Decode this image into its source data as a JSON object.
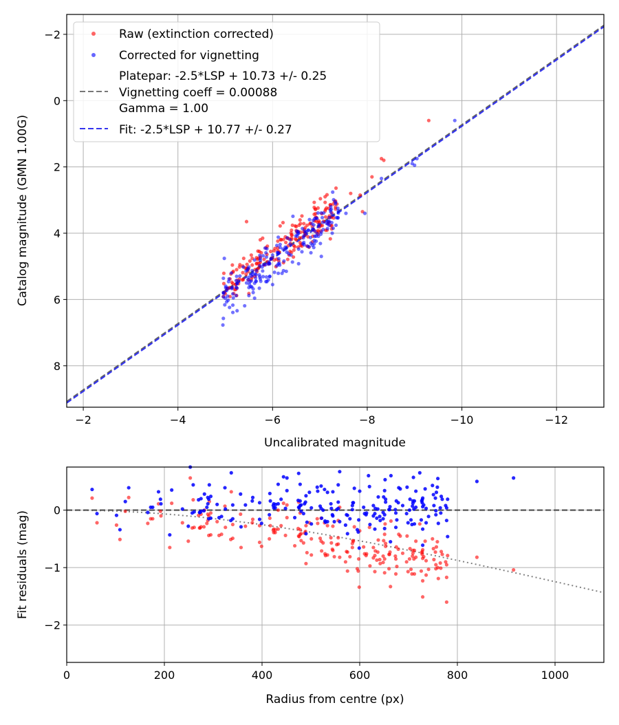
{
  "chart_data": [
    {
      "type": "scatter",
      "xlabel": "Uncalibrated magnitude",
      "ylabel": "Catalog magnitude (GMN 1.00G)",
      "xlim": [
        -1.65,
        -13.0
      ],
      "ylim": [
        -2.6,
        9.25
      ],
      "x_ticks": [
        -2,
        -4,
        -6,
        -8,
        -10,
        -12
      ],
      "x_tick_labels": [
        "−2",
        "−4",
        "−6",
        "−8",
        "−10",
        "−12"
      ],
      "y_ticks": [
        -2,
        0,
        2,
        4,
        6,
        8
      ],
      "y_tick_labels": [
        "−2",
        "0",
        "2",
        "4",
        "6",
        "8"
      ],
      "grid": true,
      "legend_position": "top-left",
      "legend": [
        {
          "label": "Raw (extinction corrected)",
          "kind": "marker",
          "color": "#ff0000"
        },
        {
          "label": "Corrected for vignetting",
          "kind": "marker",
          "color": "#0000ff"
        },
        {
          "label": "Platepar: -2.5*LSP + 10.73 +/- 0.25",
          "kind": "line-gray"
        },
        {
          "label": "Vignetting coeff = 0.00088",
          "kind": "none"
        },
        {
          "label": "Gamma = 1.00",
          "kind": "none"
        },
        {
          "label": "Fit: -2.5*LSP + 10.77 +/- 0.27",
          "kind": "line-blue"
        }
      ],
      "fit_lines": [
        {
          "name": "Platepar",
          "intercept": 10.73,
          "color": "#555555"
        },
        {
          "name": "Fit",
          "intercept": 10.77,
          "color": "#2222ee"
        }
      ],
      "series": [
        {
          "name": "Raw (extinction corrected)",
          "color": "#ff0000",
          "x": [],
          "y": []
        },
        {
          "name": "Corrected for vignetting",
          "color": "#0000ff",
          "x": [],
          "y": []
        }
      ],
      "generator": {
        "n": 210,
        "x_range": [
          -4.95,
          -7.4
        ],
        "slope": 1.0,
        "intercept": 10.75,
        "noise": 0.32,
        "outliers_raw": [
          [
            -9.3,
            0.6
          ],
          [
            -8.35,
            1.8
          ],
          [
            -8.3,
            1.75
          ],
          [
            -8.1,
            2.3
          ],
          [
            -7.85,
            2.85
          ],
          [
            -7.65,
            2.8
          ],
          [
            -7.9,
            3.35
          ],
          [
            -5.45,
            3.65
          ]
        ],
        "outliers_corrected": [
          [
            -9.85,
            0.6
          ],
          [
            -9.05,
            1.75
          ],
          [
            -8.95,
            1.9
          ],
          [
            -9.0,
            1.95
          ],
          [
            -8.3,
            2.35
          ],
          [
            -7.95,
            3.4
          ],
          [
            -7.55,
            3.4
          ]
        ]
      }
    },
    {
      "type": "scatter",
      "xlabel": "Radius from centre (px)",
      "ylabel": "Fit residuals (mag)",
      "xlim": [
        0,
        1100
      ],
      "ylim": [
        -2.65,
        0.75
      ],
      "x_ticks": [
        0,
        200,
        400,
        600,
        800,
        1000
      ],
      "x_tick_labels": [
        "0",
        "200",
        "400",
        "600",
        "800",
        "1000"
      ],
      "y_ticks": [
        -2,
        -1,
        0
      ],
      "y_tick_labels": [
        "−2",
        "−1",
        "0"
      ],
      "grid": true,
      "reference_line": {
        "y": 0,
        "style": "dashed"
      },
      "vignetting_curve": {
        "coeff": 0.00088,
        "style": "dotted"
      },
      "series": [
        {
          "name": "Raw (extinction corrected)",
          "color": "#ff0000",
          "x": [],
          "y": []
        },
        {
          "name": "Corrected for vignetting",
          "color": "#0000ff",
          "x": [],
          "y": []
        }
      ],
      "generator": {
        "n": 210,
        "r_range": [
          0,
          780
        ],
        "noise": 0.25,
        "outliers_raw": [
          [
            778,
            -1.6
          ],
          [
            840,
            -0.82
          ],
          [
            915,
            -1.04
          ],
          [
            760,
            -1.0
          ],
          [
            660,
            -1.02
          ]
        ],
        "outliers_corrected": [
          [
            840,
            0.5
          ],
          [
            915,
            0.56
          ],
          [
            780,
            -0.46
          ],
          [
            760,
            0.55
          ],
          [
            710,
            0.57
          ],
          [
            618,
            0.6
          ]
        ]
      }
    }
  ]
}
